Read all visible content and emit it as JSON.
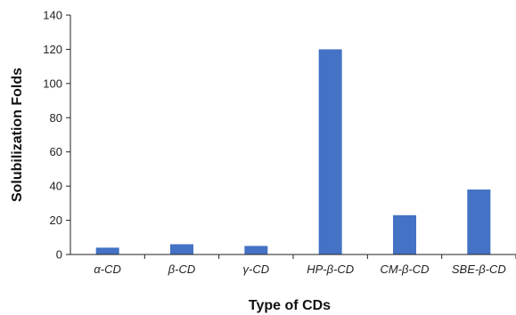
{
  "chart_data": {
    "type": "bar",
    "categories": [
      "α-CD",
      "β-CD",
      "γ-CD",
      "HP-β-CD",
      "CM-β-CD",
      "SBE-β-CD"
    ],
    "values": [
      4,
      6,
      5,
      120,
      23,
      38
    ],
    "xlabel": "Type of CDs",
    "ylabel": "Solubilization Folds",
    "ylim": [
      0,
      140
    ],
    "yticks": [
      0,
      20,
      40,
      60,
      80,
      100,
      120,
      140
    ],
    "grid": false,
    "legend": "none",
    "bar_color": "#4472C4",
    "axis_color": "#222222"
  }
}
